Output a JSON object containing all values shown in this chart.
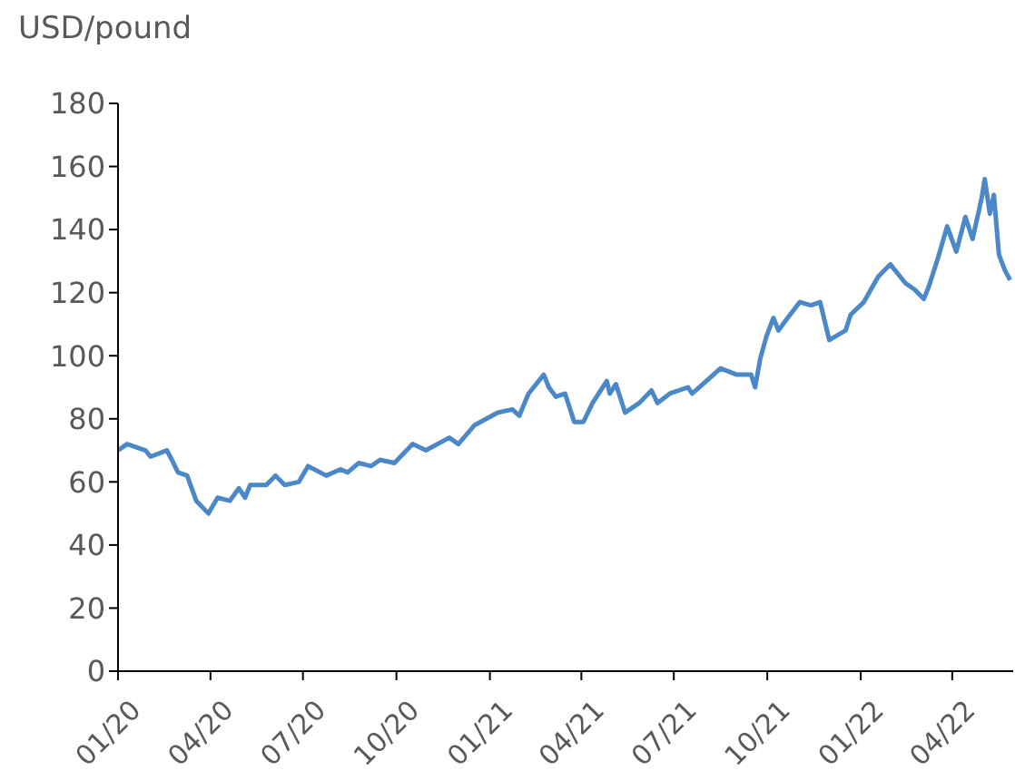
{
  "chart_data": {
    "type": "line",
    "ylabel": "USD/pound",
    "x": [
      "2020-01-01",
      "2020-01-10",
      "2020-01-28",
      "2020-02-02",
      "2020-02-18",
      "2020-02-23",
      "2020-02-29",
      "2020-03-09",
      "2020-03-18",
      "2020-03-30",
      "2020-04-08",
      "2020-04-20",
      "2020-04-29",
      "2020-05-05",
      "2020-05-10",
      "2020-05-26",
      "2020-06-04",
      "2020-06-13",
      "2020-06-27",
      "2020-07-06",
      "2020-07-24",
      "2020-08-07",
      "2020-08-14",
      "2020-08-25",
      "2020-09-06",
      "2020-09-15",
      "2020-09-29",
      "2020-10-17",
      "2020-10-30",
      "2020-11-22",
      "2020-12-01",
      "2020-12-17",
      "2021-01-09",
      "2021-01-23",
      "2021-01-30",
      "2021-02-08",
      "2021-02-23",
      "2021-02-28",
      "2021-03-07",
      "2021-03-16",
      "2021-03-25",
      "2021-04-03",
      "2021-04-12",
      "2021-04-26",
      "2021-04-29",
      "2021-05-05",
      "2021-05-14",
      "2021-05-28",
      "2021-06-09",
      "2021-06-15",
      "2021-06-27",
      "2021-07-15",
      "2021-07-19",
      "2021-08-02",
      "2021-08-16",
      "2021-09-01",
      "2021-09-15",
      "2021-09-19",
      "2021-09-24",
      "2021-09-30",
      "2021-10-07",
      "2021-10-12",
      "2021-10-21",
      "2021-11-02",
      "2021-11-13",
      "2021-11-22",
      "2021-12-01",
      "2021-12-17",
      "2021-12-22",
      "2022-01-04",
      "2022-01-18",
      "2022-01-30",
      "2022-02-14",
      "2022-02-23",
      "2022-03-04",
      "2022-03-09",
      "2022-03-18",
      "2022-03-27",
      "2022-04-05",
      "2022-04-14",
      "2022-04-21",
      "2022-04-30",
      "2022-05-03",
      "2022-05-08",
      "2022-05-12",
      "2022-05-17",
      "2022-05-23",
      "2022-05-28"
    ],
    "series": [
      {
        "color": "#4a88c7",
        "values": [
          70,
          72,
          70,
          68,
          70,
          67,
          63,
          62,
          54,
          50,
          55,
          54,
          58,
          55,
          59,
          59,
          62,
          59,
          60,
          65,
          62,
          64,
          63,
          66,
          65,
          67,
          66,
          72,
          70,
          74,
          72,
          78,
          82,
          83,
          81,
          88,
          94,
          90,
          87,
          88,
          79,
          79,
          85,
          92,
          88,
          91,
          82,
          85,
          89,
          85,
          88,
          90,
          88,
          92,
          96,
          94,
          94,
          90,
          99,
          106,
          112,
          108,
          112,
          117,
          116,
          117,
          105,
          108,
          113,
          117,
          125,
          129,
          123,
          121,
          118,
          122,
          131,
          141,
          133,
          144,
          137,
          150,
          156,
          145,
          151,
          132,
          127,
          124
        ]
      }
    ],
    "line_style": "solid",
    "xlim": [
      "2020-01-01",
      "2022-05-31"
    ],
    "xticks": [
      {
        "value": "2020-01-01",
        "label": "01/20"
      },
      {
        "value": "2020-04-01",
        "label": "04/20"
      },
      {
        "value": "2020-07-01",
        "label": "07/20"
      },
      {
        "value": "2020-10-01",
        "label": "10/20"
      },
      {
        "value": "2021-01-01",
        "label": "01/21"
      },
      {
        "value": "2021-04-01",
        "label": "04/21"
      },
      {
        "value": "2021-07-01",
        "label": "07/21"
      },
      {
        "value": "2021-10-01",
        "label": "10/21"
      },
      {
        "value": "2022-01-01",
        "label": "01/22"
      },
      {
        "value": "2022-04-01",
        "label": "04/22"
      }
    ],
    "ylim": [
      0,
      180
    ],
    "yticks": [
      0,
      20,
      40,
      60,
      80,
      100,
      120,
      140,
      160,
      180
    ]
  }
}
